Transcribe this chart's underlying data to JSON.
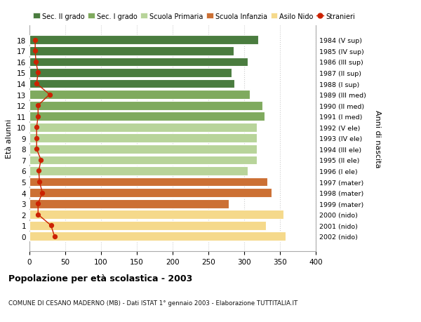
{
  "ages": [
    18,
    17,
    16,
    15,
    14,
    13,
    12,
    11,
    10,
    9,
    8,
    7,
    6,
    5,
    4,
    3,
    2,
    1,
    0
  ],
  "bar_values": [
    320,
    285,
    305,
    282,
    286,
    308,
    325,
    328,
    318,
    318,
    318,
    318,
    305,
    332,
    338,
    278,
    355,
    330,
    358
  ],
  "right_labels": [
    "1984 (V sup)",
    "1985 (IV sup)",
    "1986 (III sup)",
    "1987 (II sup)",
    "1988 (I sup)",
    "1989 (III med)",
    "1990 (II med)",
    "1991 (I med)",
    "1992 (V ele)",
    "1993 (IV ele)",
    "1994 (III ele)",
    "1995 (II ele)",
    "1996 (I ele)",
    "1997 (mater)",
    "1998 (mater)",
    "1999 (mater)",
    "2000 (nido)",
    "2001 (nido)",
    "2002 (nido)"
  ],
  "stranieri_values": [
    8,
    8,
    9,
    12,
    10,
    28,
    12,
    12,
    10,
    10,
    10,
    16,
    13,
    14,
    18,
    12,
    12,
    30,
    35
  ],
  "bar_colors": {
    "sec2": "#4a7c3f",
    "sec1": "#7faa5e",
    "primaria": "#b8d49a",
    "infanzia": "#cc7034",
    "nido": "#f5d98b"
  },
  "school_ranges": {
    "sec2": [
      14,
      18
    ],
    "sec1": [
      11,
      13
    ],
    "primaria": [
      6,
      10
    ],
    "infanzia": [
      3,
      5
    ],
    "nido": [
      0,
      2
    ]
  },
  "legend_labels": [
    "Sec. II grado",
    "Sec. I grado",
    "Scuola Primaria",
    "Scuola Infanzia",
    "Asilo Nido",
    "Stranieri"
  ],
  "legend_colors": [
    "#4a7c3f",
    "#7faa5e",
    "#b8d49a",
    "#cc7034",
    "#f5d98b",
    "#cc2200"
  ],
  "ylabel": "Età alunni",
  "right_ylabel": "Anni di nascita",
  "title": "Popolazione per età scolastica - 2003",
  "subtitle": "COMUNE DI CESANO MADERNO (MB) - Dati ISTAT 1° gennaio 2003 - Elaborazione TUTTITALIA.IT",
  "xlim": [
    0,
    400
  ],
  "xticks": [
    0,
    50,
    100,
    150,
    200,
    250,
    300,
    350,
    400
  ],
  "background_color": "#ffffff",
  "grid_color": "#cccccc"
}
